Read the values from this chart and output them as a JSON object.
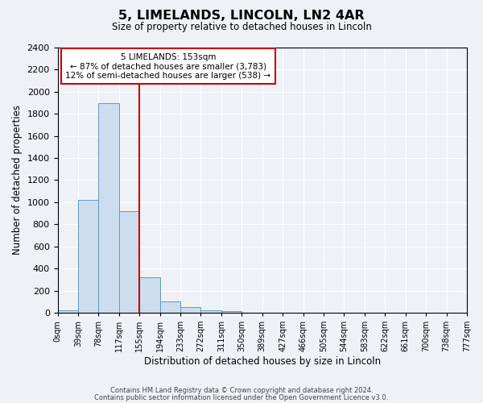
{
  "title": "5, LIMELANDS, LINCOLN, LN2 4AR",
  "subtitle": "Size of property relative to detached houses in Lincoln",
  "xlabel": "Distribution of detached houses by size in Lincoln",
  "ylabel": "Number of detached properties",
  "bar_values": [
    20,
    1020,
    1900,
    920,
    320,
    100,
    50,
    20,
    15,
    0,
    0,
    0,
    0,
    0,
    0,
    0,
    0,
    0,
    0,
    0
  ],
  "bar_labels": [
    "0sqm",
    "39sqm",
    "78sqm",
    "117sqm",
    "155sqm",
    "194sqm",
    "233sqm",
    "272sqm",
    "311sqm",
    "350sqm",
    "389sqm",
    "427sqm",
    "466sqm",
    "505sqm",
    "544sqm",
    "583sqm",
    "622sqm",
    "661sqm",
    "700sqm",
    "738sqm",
    "777sqm"
  ],
  "bar_color": "#ccdded",
  "bar_edge_color": "#6699bb",
  "red_line_x": 4.0,
  "ylim": [
    0,
    2400
  ],
  "yticks": [
    0,
    200,
    400,
    600,
    800,
    1000,
    1200,
    1400,
    1600,
    1800,
    2000,
    2200,
    2400
  ],
  "annotation_title": "5 LIMELANDS: 153sqm",
  "annotation_line1": "← 87% of detached houses are smaller (3,783)",
  "annotation_line2": "12% of semi-detached houses are larger (538) →",
  "annotation_box_color": "#ffffff",
  "annotation_box_edge": "#cc0000",
  "red_line_color": "#cc0000",
  "footer1": "Contains HM Land Registry data © Crown copyright and database right 2024.",
  "footer2": "Contains public sector information licensed under the Open Government Licence v3.0.",
  "background_color": "#eef2f7",
  "plot_bg_color": "#eef2f7",
  "grid_color": "#ffffff"
}
